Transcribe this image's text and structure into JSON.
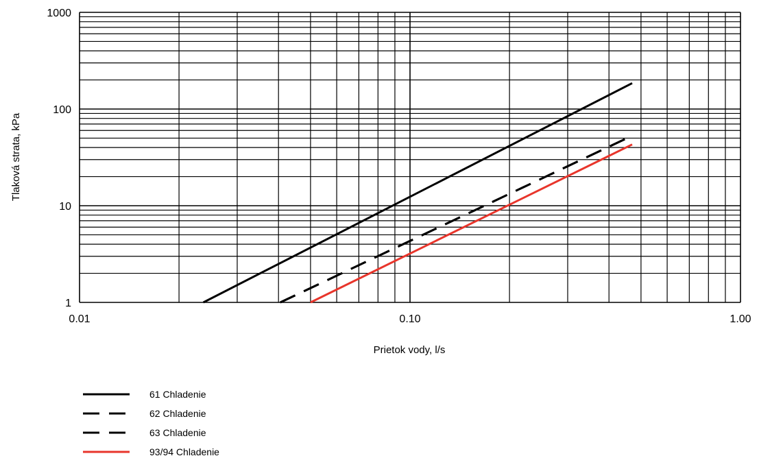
{
  "chart_data": {
    "type": "line",
    "xlabel": "Prietok vody, l/s",
    "ylabel": "Tlaková strata, kPa",
    "xscale": "log",
    "yscale": "log",
    "xlim": [
      0.01,
      1.0
    ],
    "ylim": [
      1,
      1000
    ],
    "grid": true,
    "x_ticks": [
      {
        "value": 0.01,
        "label": "0.01"
      },
      {
        "value": 0.1,
        "label": "0.10"
      },
      {
        "value": 1.0,
        "label": "1.00"
      }
    ],
    "y_ticks": [
      {
        "value": 1,
        "label": "1"
      },
      {
        "value": 10,
        "label": "10"
      },
      {
        "value": 100,
        "label": "100"
      },
      {
        "value": 1000,
        "label": "1000"
      }
    ],
    "legend_position": "bottom-left",
    "series": [
      {
        "name": "61 Chladenie",
        "style": "solid",
        "color": "#000000",
        "x": [
          0.0237,
          0.47
        ],
        "y": [
          1,
          185
        ]
      },
      {
        "name": "62 Chladenie",
        "style": "dashed",
        "color": "#000000",
        "x": [
          0.0405,
          0.47
        ],
        "y": [
          1,
          53
        ]
      },
      {
        "name": "63 Chladenie",
        "style": "dashed",
        "color": "#000000",
        "x": [
          0.0405,
          0.47
        ],
        "y": [
          1,
          53
        ]
      },
      {
        "name": "93/94 Chladenie",
        "style": "solid",
        "color": "#e8352b",
        "x": [
          0.05,
          0.47
        ],
        "y": [
          1,
          43
        ]
      }
    ]
  }
}
